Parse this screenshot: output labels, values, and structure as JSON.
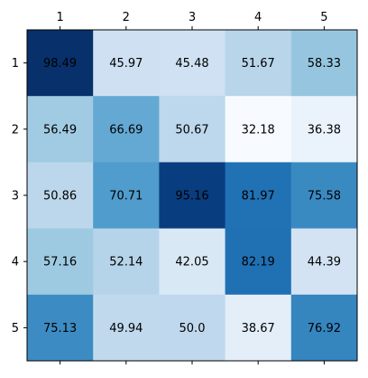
{
  "chart_data": {
    "type": "heatmap",
    "title": "",
    "xlabel": "",
    "ylabel": "",
    "x_ticks": [
      "1",
      "2",
      "3",
      "4",
      "5"
    ],
    "y_ticks": [
      "1",
      "2",
      "3",
      "4",
      "5"
    ],
    "x_tick_position": "top-and-bottom",
    "colormap": "Blues",
    "color_range": [
      0,
      100
    ],
    "values": [
      [
        98.49,
        45.97,
        45.48,
        51.67,
        58.33
      ],
      [
        56.49,
        66.69,
        50.67,
        32.18,
        36.38
      ],
      [
        50.86,
        70.71,
        95.16,
        81.97,
        75.58
      ],
      [
        57.16,
        52.14,
        42.05,
        82.19,
        44.39
      ],
      [
        75.13,
        49.94,
        50.0,
        38.67,
        76.92
      ]
    ],
    "cell_labels": [
      [
        "98.49",
        "45.97",
        "45.48",
        "51.67",
        "58.33"
      ],
      [
        "56.49",
        "66.69",
        "50.67",
        "32.18",
        "36.38"
      ],
      [
        "50.86",
        "70.71",
        "95.16",
        "81.97",
        "75.58"
      ],
      [
        "57.16",
        "52.14",
        "42.05",
        "82.19",
        "44.39"
      ],
      [
        "75.13",
        "49.94",
        "50.0",
        "38.67",
        "76.92"
      ]
    ]
  }
}
